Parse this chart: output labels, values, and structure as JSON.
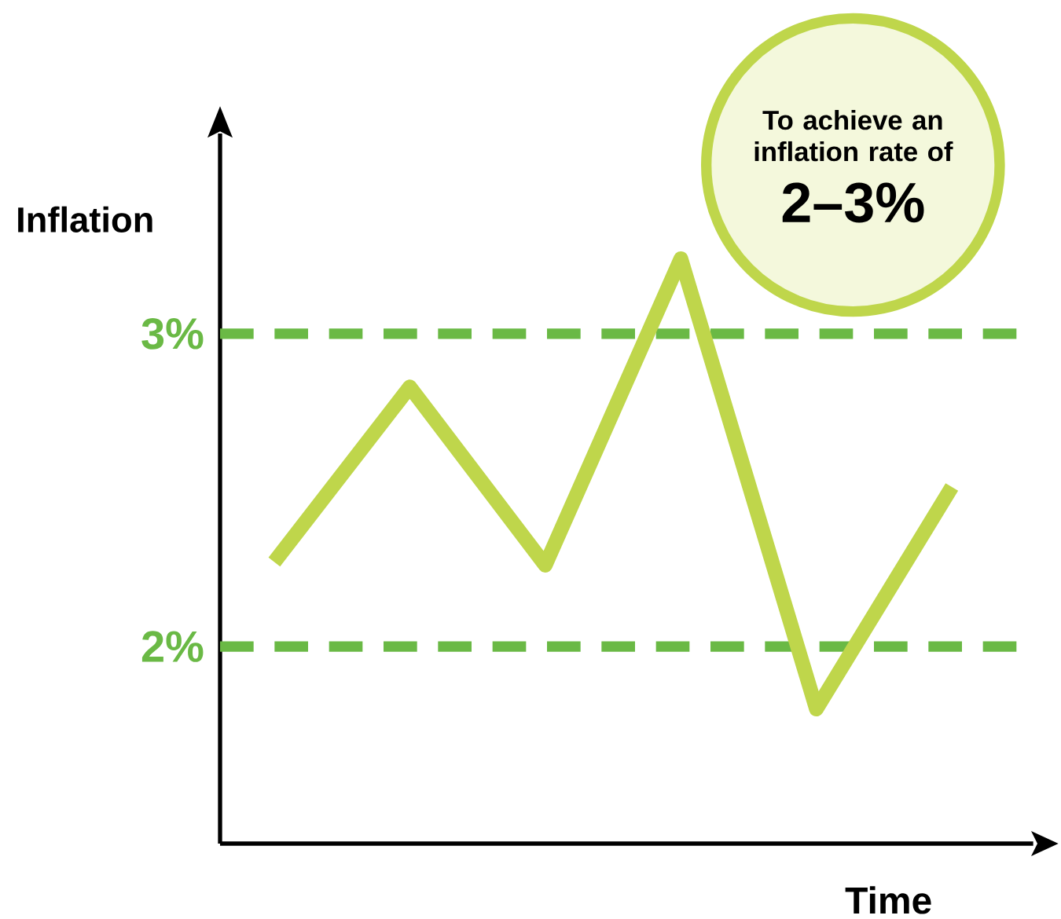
{
  "chart_data": {
    "type": "line",
    "ylabel": "Inflation",
    "xlabel": "Time",
    "categories": [
      null,
      null,
      null,
      null,
      null,
      null
    ],
    "series": [
      {
        "color": "#bfd64b",
        "values": [
          2.27,
          2.83,
          2.26,
          3.24,
          1.8,
          2.51
        ]
      }
    ],
    "ylim": [
      1.37,
      3.64
    ],
    "yticks": [
      {
        "value": 2,
        "label": "2%"
      },
      {
        "value": 3,
        "label": "3%"
      }
    ],
    "ref_lines": [
      {
        "axis": "y",
        "value": 3,
        "color": "#6ab945",
        "line_style": "dashed"
      },
      {
        "axis": "y",
        "value": 2,
        "color": "#6ab945",
        "line_style": "dashed"
      }
    ],
    "annotations": [
      "To achieve an inflation rate of",
      "2–3%"
    ],
    "marker": "none",
    "line_style": "solid",
    "grid": false
  }
}
